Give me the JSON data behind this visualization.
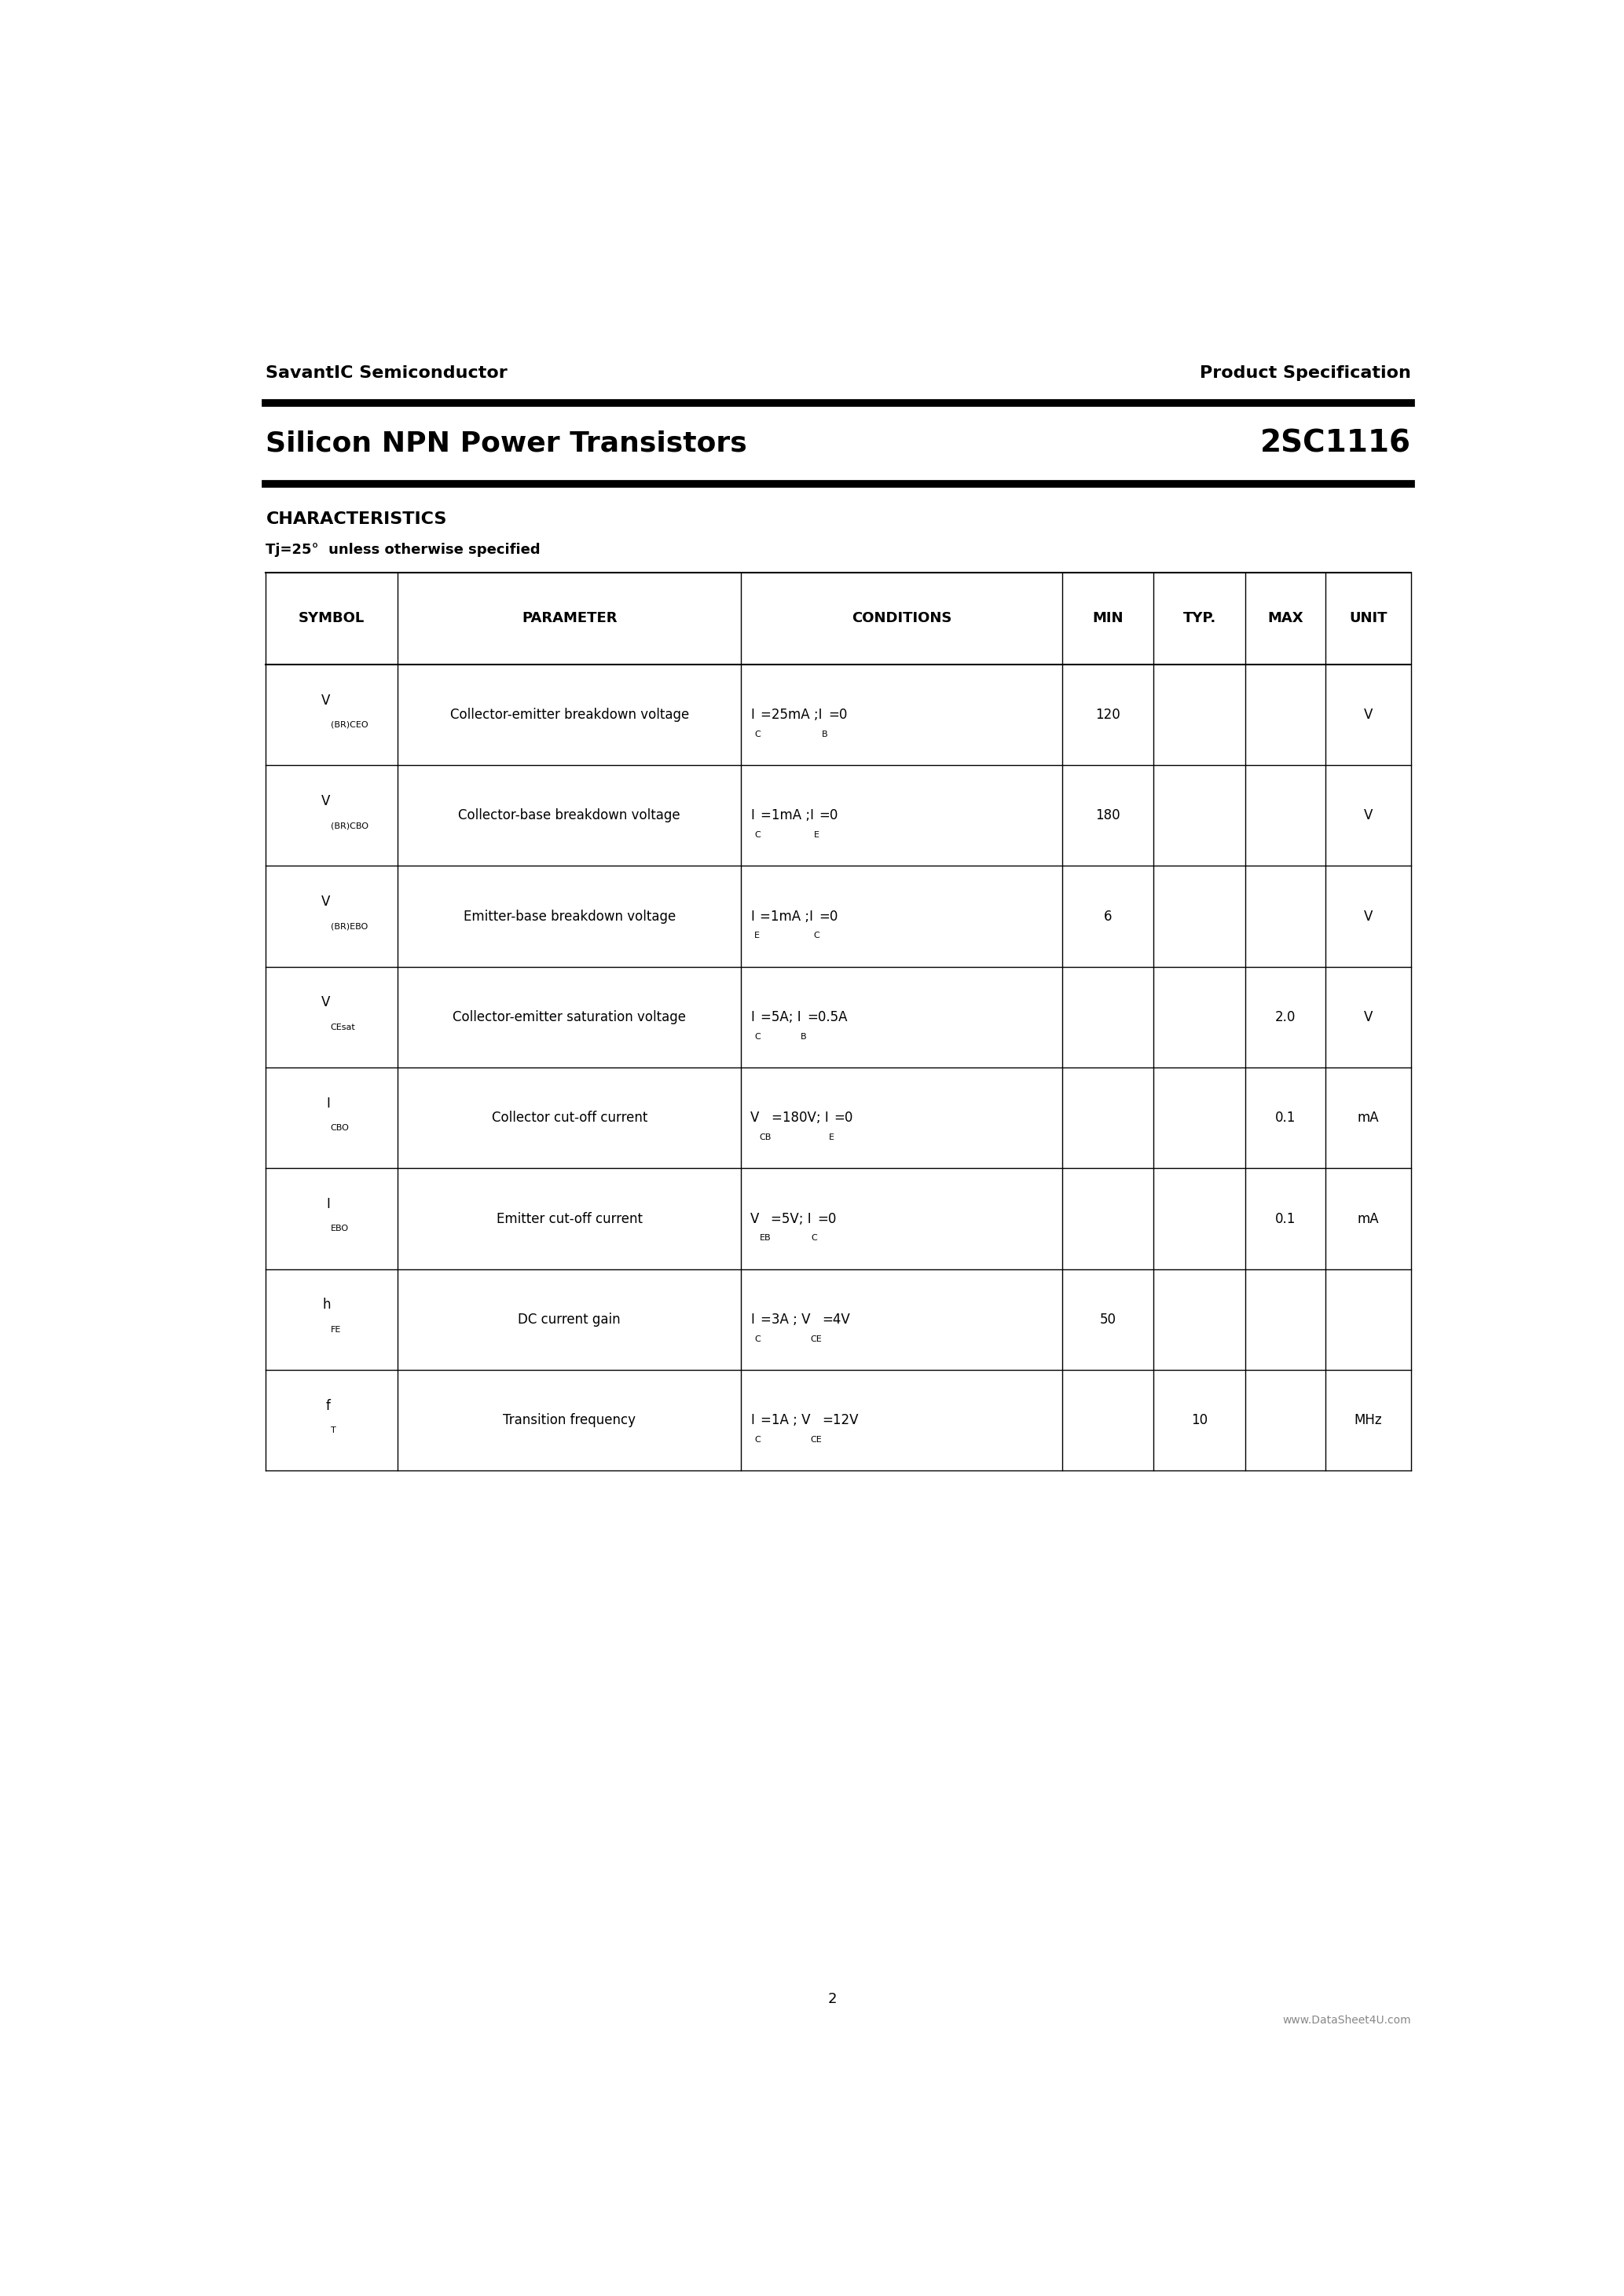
{
  "company": "SavantIC Semiconductor",
  "doc_type": "Product Specification",
  "title": "Silicon NPN Power Transistors",
  "part_number": "2SC1116",
  "section": "CHARACTERISTICS",
  "subtitle": "Tj=25°  unless otherwise specified",
  "watermark": "www.DataSheet4U.com",
  "footer_page": "2",
  "footer_url": "www.DataSheet4U.com",
  "table_headers": [
    "SYMBOL",
    "PARAMETER",
    "CONDITIONS",
    "MIN",
    "TYP.",
    "MAX",
    "UNIT"
  ],
  "table_rows": [
    {
      "symbol_main": "V",
      "symbol_sub": "(BR)CEO",
      "parameter": "Collector-emitter breakdown voltage",
      "conditions": "IC=25mA ;IB=0",
      "min": "120",
      "typ": "",
      "max": "",
      "unit": "V"
    },
    {
      "symbol_main": "V",
      "symbol_sub": "(BR)CBO",
      "parameter": "Collector-base breakdown voltage",
      "conditions": "IC=1mA ;IE=0",
      "min": "180",
      "typ": "",
      "max": "",
      "unit": "V"
    },
    {
      "symbol_main": "V",
      "symbol_sub": "(BR)EBO",
      "parameter": "Emitter-base breakdown voltage",
      "conditions": "IE=1mA ;IC=0",
      "min": "6",
      "typ": "",
      "max": "",
      "unit": "V"
    },
    {
      "symbol_main": "V",
      "symbol_sub": "CEsat",
      "parameter": "Collector-emitter saturation voltage",
      "conditions": "IC=5A; IB=0.5A",
      "min": "",
      "typ": "",
      "max": "2.0",
      "unit": "V"
    },
    {
      "symbol_main": "I",
      "symbol_sub": "CBO",
      "parameter": "Collector cut-off current",
      "conditions": "VCB=180V; IE=0",
      "min": "",
      "typ": "",
      "max": "0.1",
      "unit": "mA"
    },
    {
      "symbol_main": "I",
      "symbol_sub": "EBO",
      "parameter": "Emitter cut-off current",
      "conditions": "VEB=5V; IC=0",
      "min": "",
      "typ": "",
      "max": "0.1",
      "unit": "mA"
    },
    {
      "symbol_main": "h",
      "symbol_sub": "FE",
      "parameter": "DC current gain",
      "conditions": "IC=3A ; VCE=4V",
      "min": "50",
      "typ": "",
      "max": "",
      "unit": ""
    },
    {
      "symbol_main": "f",
      "symbol_sub": "T",
      "parameter": "Transition frequency",
      "conditions": "IC=1A ; VCE=12V",
      "min": "",
      "typ": "10",
      "max": "",
      "unit": "MHz"
    }
  ],
  "bg_color": "#ffffff",
  "line_color": "#000000"
}
